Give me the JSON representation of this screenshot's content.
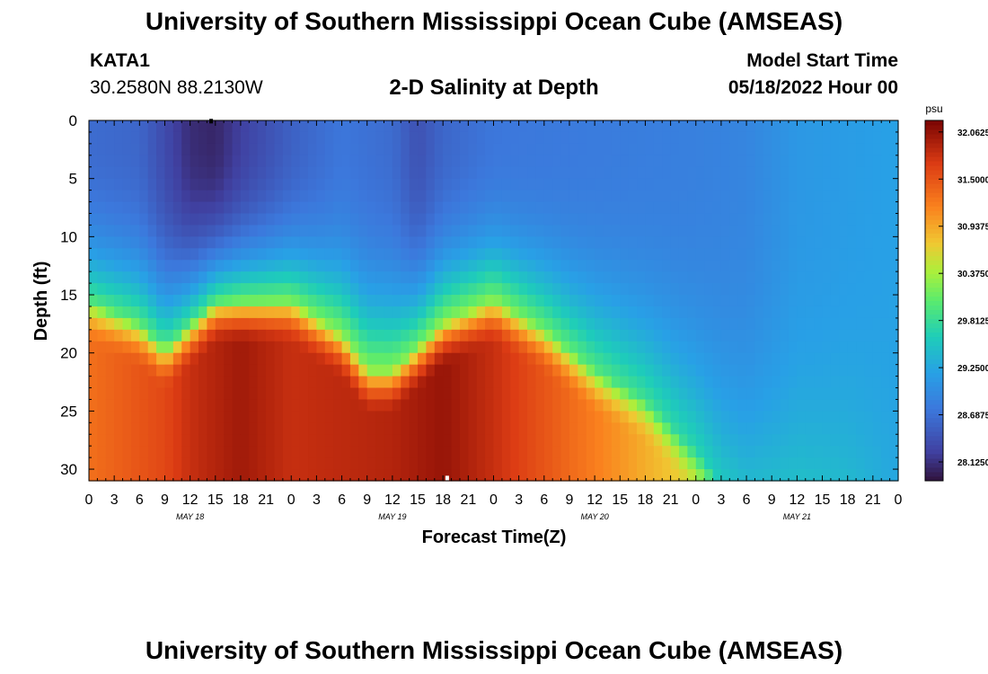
{
  "header": {
    "title": "University of Southern Mississippi Ocean Cube (AMSEAS)",
    "station_id": "KATA1",
    "coordinates": "30.2580N  88.2130W",
    "subtitle": "2-D Salinity at Depth",
    "model_start_label": "Model Start Time",
    "model_start_value": "05/18/2022 Hour 00"
  },
  "footer": {
    "title": "University of Southern Mississippi Ocean Cube (AMSEAS)"
  },
  "chart_data": {
    "type": "heatmap",
    "title": "2-D Salinity at Depth",
    "xlabel": "Forecast Time(Z)",
    "ylabel": "Depth (ft)",
    "x_range_hours": [
      0,
      96
    ],
    "ylim": [
      0,
      31
    ],
    "y_inverted": true,
    "x_tick_step_hours": 3,
    "x_tick_labels": [
      "0",
      "3",
      "6",
      "9",
      "12",
      "15",
      "18",
      "21",
      "0",
      "3",
      "6",
      "9",
      "12",
      "15",
      "18",
      "21",
      "0",
      "3",
      "6",
      "9",
      "12",
      "15",
      "18",
      "21",
      "0",
      "3",
      "6",
      "9",
      "12",
      "15",
      "18",
      "21",
      "0"
    ],
    "day_labels": [
      {
        "label": "MAY 18",
        "hour": 12
      },
      {
        "label": "MAY 19",
        "hour": 36
      },
      {
        "label": "MAY 20",
        "hour": 60
      },
      {
        "label": "MAY 21",
        "hour": 84
      }
    ],
    "y_ticks": [
      0,
      5,
      10,
      15,
      20,
      25,
      30
    ],
    "colorbar": {
      "unit": "psu",
      "min": 27.9,
      "max": 32.2,
      "tick_values": [
        32.0625,
        31.5,
        30.9375,
        30.375,
        29.8125,
        29.25,
        28.6875,
        28.125
      ],
      "tick_labels": [
        "32.0625",
        "31.5000",
        "30.9375",
        "30.3750",
        "29.8125",
        "29.2500",
        "28.6875",
        "28.1250"
      ]
    },
    "interface_depth_ft": {
      "hours": [
        0,
        6,
        9,
        12,
        15,
        24,
        30,
        33,
        36,
        42,
        48,
        54,
        60,
        66,
        72,
        75,
        78,
        96
      ],
      "depth": [
        15.5,
        17.5,
        19.5,
        17.5,
        15.5,
        15.5,
        18.5,
        21.5,
        21.5,
        17.5,
        15.5,
        18,
        21.5,
        24,
        28.5,
        31,
        31,
        31
      ]
    },
    "surface_salinity_psu": {
      "hours": [
        0,
        6,
        9,
        12,
        15,
        18,
        21,
        24,
        27,
        30,
        36,
        39,
        42,
        48,
        60,
        72,
        78,
        84,
        96
      ],
      "values": [
        28.65,
        28.6,
        28.35,
        28.1,
        28.05,
        28.25,
        28.4,
        28.55,
        28.65,
        28.75,
        28.65,
        28.4,
        28.6,
        28.75,
        28.8,
        28.85,
        28.9,
        29.1,
        29.2
      ]
    },
    "bottom_salinity_psu": {
      "hours": [
        0,
        9,
        12,
        18,
        24,
        36,
        42,
        48,
        54,
        60,
        66,
        72,
        78,
        84,
        90,
        96
      ],
      "values": [
        31.3,
        31.6,
        31.8,
        32.0,
        31.8,
        31.9,
        32.05,
        31.8,
        31.5,
        31.2,
        30.9,
        30.6,
        29.95,
        29.85,
        29.7,
        29.3
      ]
    },
    "markers": [
      {
        "hour": 14.5,
        "depth_ft": 0.1,
        "color": "#000000"
      },
      {
        "hour": 42.5,
        "depth_ft": 30.8,
        "color": "#ffffff"
      }
    ]
  }
}
